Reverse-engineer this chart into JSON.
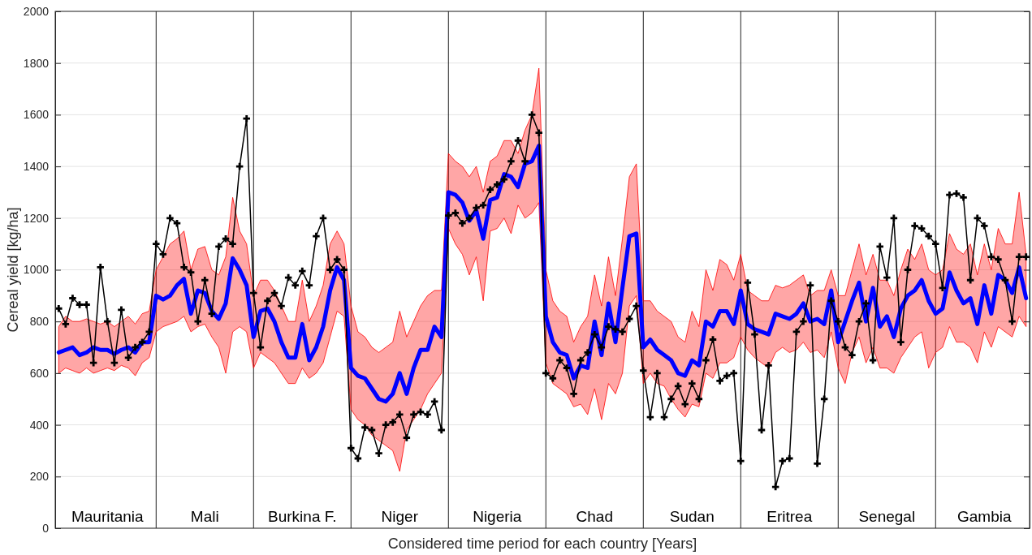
{
  "chart_data": {
    "type": "line",
    "xlabel": "Considered time period for each country [Years]",
    "ylabel": "Cereal yield [kg/ha]",
    "categories": [
      null,
      null,
      null,
      null,
      null,
      null,
      null,
      "Mauritania",
      null,
      null,
      null,
      null,
      null,
      null,
      null,
      null,
      null,
      null,
      null,
      null,
      null,
      "Mali",
      null,
      null,
      null,
      null,
      null,
      null,
      null,
      null,
      null,
      null,
      null,
      null,
      null,
      "Burkina F.",
      null,
      null,
      null,
      null,
      null,
      null,
      null,
      null,
      null,
      null,
      null,
      null,
      null,
      "Niger",
      null,
      null,
      null,
      null,
      null,
      null,
      null,
      null,
      null,
      null,
      null,
      null,
      null,
      "Nigeria",
      null,
      null,
      null,
      null,
      null,
      null,
      null,
      null,
      null,
      null,
      null,
      null,
      null,
      "Chad",
      null,
      null,
      null,
      null,
      null,
      null,
      null,
      null,
      null,
      null,
      null,
      null,
      null,
      "Sudan",
      null,
      null,
      null,
      null,
      null,
      null,
      null,
      null,
      null,
      null,
      null,
      null,
      null,
      "Eritrea",
      null,
      null,
      null,
      null,
      null,
      null,
      null,
      null,
      null,
      null,
      null,
      null,
      null,
      "Senegal",
      null,
      null,
      null,
      null,
      null,
      null,
      null,
      null,
      null,
      null,
      null,
      null,
      null,
      "Gambia",
      null,
      null,
      null,
      null,
      null,
      null
    ],
    "series": [
      {
        "color": "#0000ff",
        "marker": "none",
        "values": [
          680,
          690,
          700,
          670,
          680,
          700,
          690,
          690,
          675,
          690,
          700,
          680,
          720,
          720,
          900,
          885,
          900,
          940,
          965,
          830,
          920,
          910,
          840,
          810,
          870,
          1045,
          1000,
          940,
          740,
          840,
          850,
          800,
          720,
          660,
          660,
          790,
          650,
          700,
          780,
          920,
          1010,
          960,
          620,
          590,
          580,
          540,
          500,
          490,
          520,
          600,
          520,
          620,
          690,
          690,
          780,
          740,
          1300,
          1290,
          1260,
          1190,
          1230,
          1120,
          1270,
          1280,
          1370,
          1360,
          1320,
          1410,
          1420,
          1480,
          820,
          720,
          680,
          670,
          580,
          630,
          620,
          800,
          670,
          870,
          720,
          930,
          1130,
          1140,
          700,
          730,
          690,
          670,
          650,
          600,
          590,
          650,
          630,
          800,
          780,
          840,
          840,
          790,
          920,
          790,
          770,
          760,
          750,
          830,
          820,
          810,
          830,
          870,
          800,
          810,
          790,
          920,
          720,
          800,
          880,
          950,
          800,
          930,
          780,
          820,
          740,
          850,
          900,
          920,
          960,
          880,
          830,
          850,
          990,
          920,
          870,
          890,
          790,
          940,
          830,
          980,
          960,
          910,
          1010,
          890
        ],
        "lower": [
          600,
          620,
          610,
          600,
          620,
          600,
          610,
          620,
          610,
          630,
          620,
          590,
          640,
          660,
          760,
          780,
          790,
          800,
          820,
          760,
          780,
          790,
          740,
          700,
          600,
          760,
          780,
          760,
          620,
          680,
          660,
          640,
          600,
          560,
          560,
          620,
          580,
          600,
          640,
          740,
          840,
          820,
          460,
          420,
          400,
          360,
          340,
          320,
          300,
          220,
          380,
          420,
          460,
          520,
          560,
          600,
          1160,
          1100,
          1060,
          980,
          1050,
          880,
          1150,
          1160,
          1200,
          1140,
          1250,
          1200,
          1220,
          1260,
          640,
          560,
          540,
          520,
          470,
          480,
          440,
          540,
          420,
          560,
          520,
          600,
          860,
          900,
          560,
          600,
          560,
          550,
          500,
          460,
          430,
          480,
          470,
          600,
          580,
          640,
          640,
          660,
          740,
          690,
          660,
          640,
          620,
          680,
          700,
          680,
          690,
          720,
          680,
          690,
          660,
          760,
          620,
          560,
          680,
          740,
          640,
          700,
          620,
          620,
          600,
          660,
          700,
          740,
          760,
          620,
          680,
          700,
          780,
          720,
          720,
          700,
          640,
          760,
          700,
          780,
          760,
          740,
          820,
          780
        ],
        "upper": [
          780,
          820,
          800,
          800,
          810,
          800,
          790,
          800,
          780,
          800,
          820,
          790,
          830,
          840,
          1000,
          1050,
          1100,
          1120,
          1150,
          1000,
          1080,
          1090,
          1000,
          980,
          1050,
          1280,
          1150,
          1100,
          900,
          960,
          960,
          920,
          860,
          800,
          800,
          960,
          800,
          860,
          940,
          1100,
          1150,
          1100,
          860,
          760,
          740,
          700,
          680,
          700,
          720,
          840,
          740,
          800,
          860,
          900,
          920,
          920,
          1450,
          1420,
          1400,
          1360,
          1400,
          1300,
          1420,
          1440,
          1500,
          1500,
          1450,
          1540,
          1600,
          1780,
          1000,
          880,
          840,
          820,
          720,
          780,
          820,
          980,
          860,
          1050,
          900,
          1120,
          1360,
          1410,
          880,
          880,
          840,
          820,
          800,
          740,
          720,
          840,
          780,
          1000,
          920,
          1040,
          1020,
          960,
          1060,
          920,
          900,
          880,
          880,
          940,
          930,
          940,
          960,
          980,
          900,
          920,
          920,
          1000,
          900,
          900,
          1000,
          1100,
          980,
          1060,
          960,
          960,
          900,
          1000,
          1080,
          1040,
          1100,
          1000,
          980,
          1000,
          1140,
          1080,
          1060,
          1100,
          980,
          1100,
          1000,
          1160,
          1100,
          1100,
          1300,
          1060
        ]
      },
      {
        "color": "#000000",
        "marker": "cross",
        "values": [
          850,
          790,
          890,
          865,
          865,
          640,
          1010,
          800,
          640,
          845,
          660,
          700,
          720,
          760,
          1100,
          1060,
          1200,
          1180,
          1010,
          990,
          800,
          960,
          830,
          1090,
          1120,
          1100,
          1400,
          1585,
          910,
          700,
          880,
          910,
          860,
          970,
          940,
          995,
          940,
          1130,
          1200,
          1000,
          1040,
          1000,
          310,
          270,
          390,
          380,
          290,
          400,
          410,
          440,
          350,
          440,
          450,
          440,
          490,
          380,
          1210,
          1220,
          1180,
          1200,
          1240,
          1250,
          1310,
          1330,
          1350,
          1420,
          1500,
          1420,
          1600,
          1530,
          600,
          580,
          650,
          620,
          520,
          650,
          680,
          750,
          700,
          780,
          770,
          760,
          810,
          860,
          610,
          430,
          600,
          430,
          500,
          550,
          480,
          560,
          500,
          650,
          730,
          570,
          590,
          600,
          260,
          950,
          750,
          380,
          630,
          160,
          260,
          270,
          760,
          800,
          940,
          250,
          500,
          880,
          800,
          700,
          670,
          800,
          870,
          650,
          1090,
          970,
          1200,
          720,
          1000,
          1170,
          1160,
          1130,
          1100,
          930,
          1290,
          1295,
          1280,
          960,
          1200,
          1170,
          1050,
          1040,
          960,
          800,
          1050,
          1050
        ]
      }
    ],
    "ylim": [
      0,
      2000
    ],
    "yticks": [
      0,
      200,
      400,
      600,
      800,
      1000,
      1200,
      1400,
      1600,
      1800,
      2000
    ],
    "grid": "y"
  }
}
